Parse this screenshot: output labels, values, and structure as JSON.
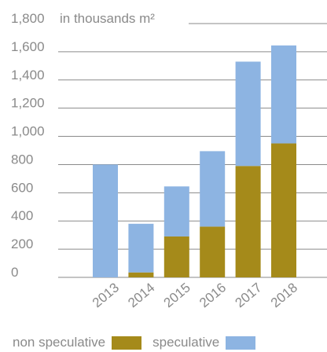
{
  "chart_data": {
    "type": "bar",
    "stacked": true,
    "categories": [
      "2013",
      "2014",
      "2015",
      "2016",
      "2017",
      "2018"
    ],
    "series": [
      {
        "name": "non speculative",
        "color": "#a58a1a",
        "values": [
          0,
          35,
          290,
          360,
          790,
          950
        ]
      },
      {
        "name": "speculative",
        "color": "#8db4e2",
        "values": [
          800,
          345,
          355,
          535,
          740,
          695
        ]
      }
    ],
    "yunit": "in thousands m²",
    "yticks": [
      0,
      200,
      400,
      600,
      800,
      1000,
      1200,
      1400,
      1600,
      1800
    ],
    "ytick_labels": [
      "0",
      "200",
      "400",
      "600",
      "800",
      "1,000",
      "1,200",
      "1,400",
      "1,600",
      "1,800"
    ],
    "ylim": [
      0,
      1800
    ],
    "grid": true,
    "legend_position": "bottom"
  }
}
